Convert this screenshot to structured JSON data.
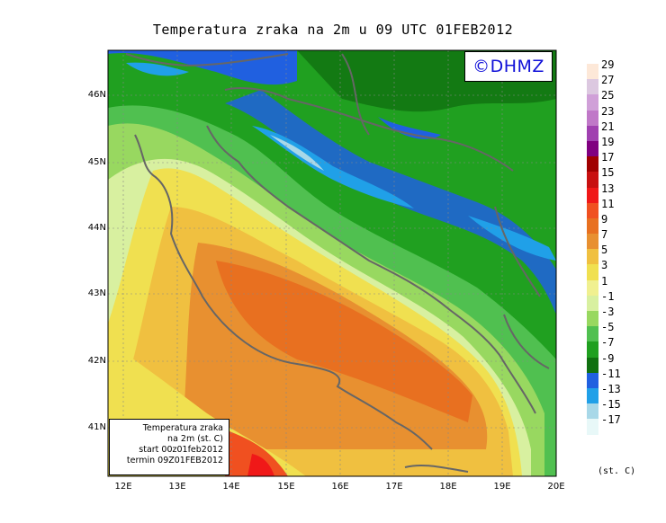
{
  "title": "Temperatura zraka na 2m u 09 UTC 01FEB2012",
  "logo": "©DHMZ",
  "lat_labels": [
    "46N",
    "45N",
    "44N",
    "43N",
    "42N",
    "41N"
  ],
  "lon_labels": [
    "12E",
    "13E",
    "14E",
    "15E",
    "16E",
    "17E",
    "18E",
    "19E",
    "20E"
  ],
  "info": {
    "line1": "Temperatura zraka",
    "line2": "na 2m (st. C)",
    "line3": "start 00z01feb2012",
    "line4": "termin 09Z01FEB2012"
  },
  "legend": {
    "unit": "(st. C)",
    "labels": [
      "29",
      "27",
      "25",
      "23",
      "21",
      "19",
      "17",
      "15",
      "13",
      "11",
      "9",
      "7",
      "5",
      "3",
      "1",
      "-1",
      "-3",
      "-5",
      "-7",
      "-9",
      "-11",
      "-13",
      "-15",
      "-17"
    ],
    "colors": [
      "#fde8d8",
      "#dcc8e0",
      "#d0a0d8",
      "#c078c8",
      "#a040b0",
      "#800080",
      "#a00000",
      "#c81010",
      "#f01818",
      "#f05020",
      "#e87020",
      "#e89030",
      "#f0c040",
      "#f0e050",
      "#f0f090",
      "#d8f0a0",
      "#98d860",
      "#50c050",
      "#20a020",
      "#107010",
      "#2060e0",
      "#20a0e8",
      "#a8d8e8",
      "#e8f8f8"
    ]
  }
}
